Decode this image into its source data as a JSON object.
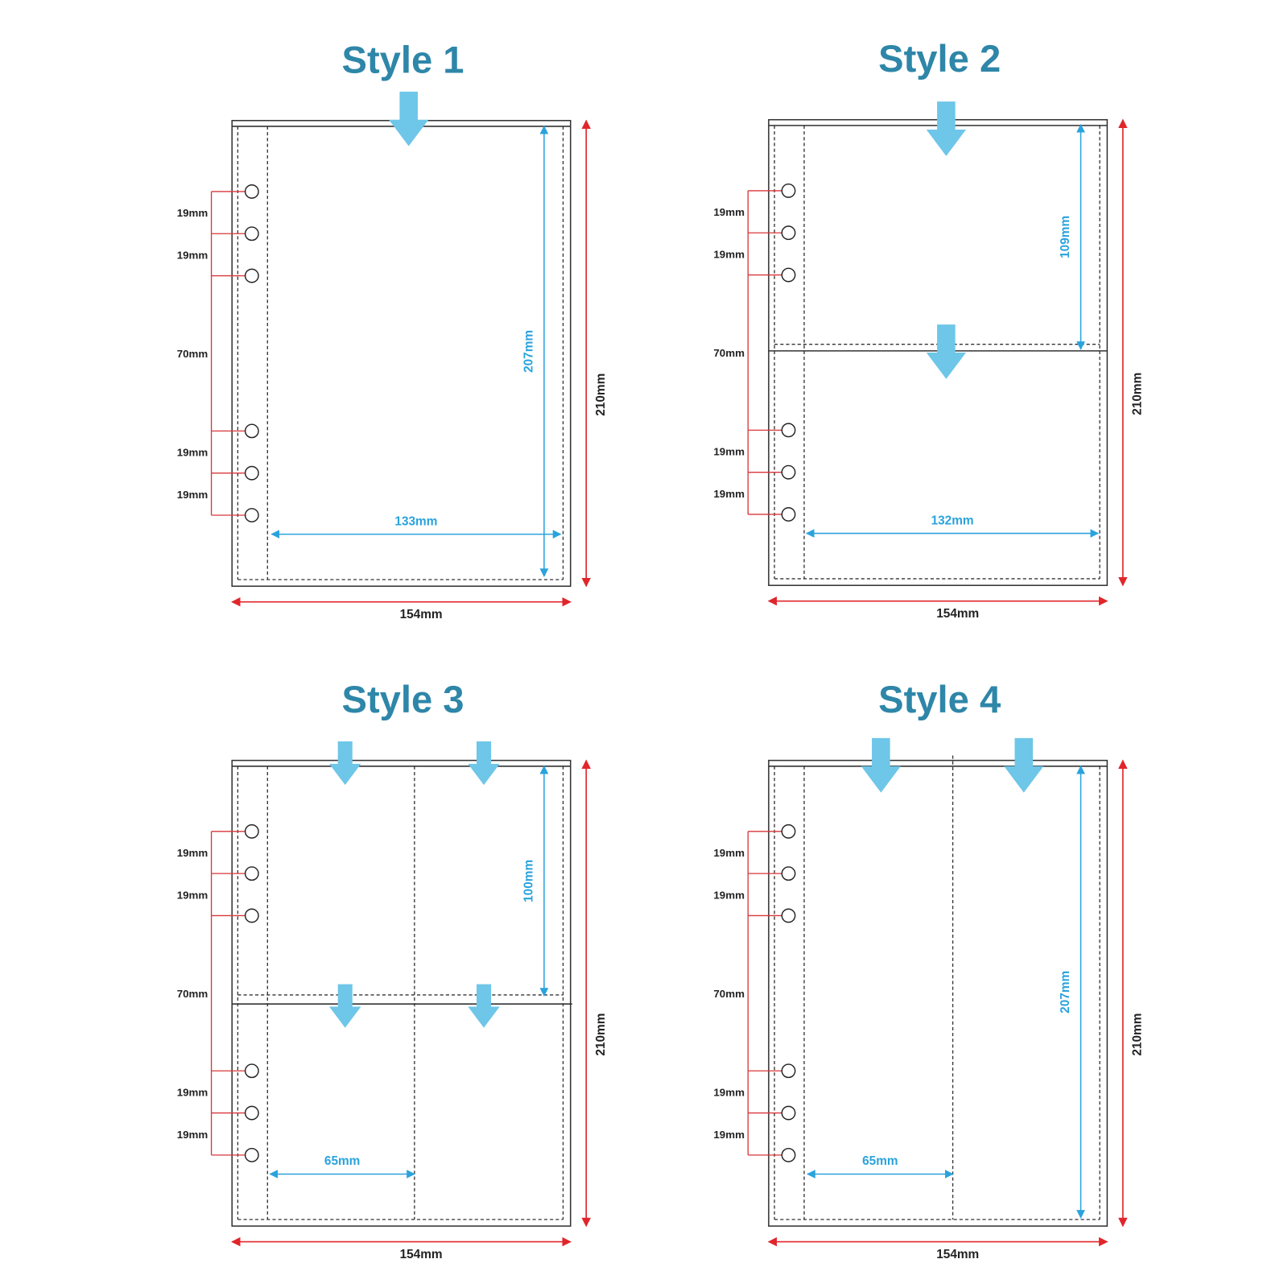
{
  "panels": [
    {
      "title": "Style 1",
      "spacings": [
        "19mm",
        "19mm",
        "70mm",
        "19mm",
        "19mm"
      ],
      "inner_width": "133mm",
      "inner_height": "207mm",
      "width": "154mm",
      "height": "210mm"
    },
    {
      "title": "Style 2",
      "spacings": [
        "19mm",
        "19mm",
        "70mm",
        "19mm",
        "19mm"
      ],
      "inner_width": "132mm",
      "inner_height": "109mm",
      "width": "154mm",
      "height": "210mm"
    },
    {
      "title": "Style 3",
      "spacings": [
        "19mm",
        "19mm",
        "70mm",
        "19mm",
        "19mm"
      ],
      "inner_width": "65mm",
      "inner_height": "100mm",
      "width": "154mm",
      "height": "210mm"
    },
    {
      "title": "Style 4",
      "spacings": [
        "19mm",
        "19mm",
        "70mm",
        "19mm",
        "19mm"
      ],
      "inner_width": "65mm",
      "inner_height": "207mm",
      "width": "154mm",
      "height": "210mm"
    }
  ]
}
